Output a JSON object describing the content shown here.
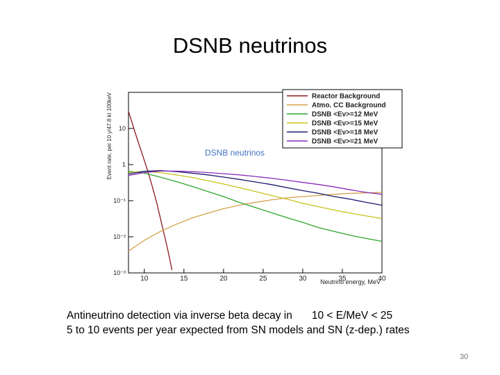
{
  "slide": {
    "title": "DSNB neutrinos",
    "caption_line1_a": "Antineutrino detection via inverse beta decay in",
    "caption_line1_b": "10 < E/MeV < 25",
    "caption_line2": "5 to 10 events per year expected from SN models and SN (z-dep.) rates",
    "page_number": "30"
  },
  "chart_data": {
    "type": "line",
    "xlabel": "Neutrino energy, MeV",
    "ylabel": "Event rate, per 10 y/47.8 kt 100keV",
    "inset_label": "DSNB neutrinos",
    "xlim": [
      8,
      40
    ],
    "ylim": [
      0.001,
      100
    ],
    "yscale": "log",
    "x_ticks": [
      10,
      15,
      20,
      25,
      30,
      35,
      40
    ],
    "y_ticks": [
      {
        "value": 0.001,
        "label": "10⁻³"
      },
      {
        "value": 0.01,
        "label": "10⁻²"
      },
      {
        "value": 0.1,
        "label": "10⁻¹"
      },
      {
        "value": 1,
        "label": "1"
      },
      {
        "value": 10,
        "label": "10"
      }
    ],
    "legend_position": "top-right",
    "series": [
      {
        "name": "Reactor Background",
        "color": "#8b1a1a",
        "x": [
          8.0,
          9.0,
          10.0,
          10.5,
          11.0,
          11.5,
          12.0,
          12.5,
          13.0,
          13.5
        ],
        "y": [
          30,
          6,
          1.3,
          0.6,
          0.25,
          0.1,
          0.035,
          0.012,
          0.004,
          0.0012
        ]
      },
      {
        "name": "Atmo. CC Background",
        "color": "#d4a04a",
        "x": [
          8,
          10,
          12,
          14,
          16,
          18,
          20,
          22,
          24,
          26,
          28,
          30,
          32,
          34,
          36,
          38,
          40
        ],
        "y": [
          0.004,
          0.008,
          0.014,
          0.022,
          0.033,
          0.045,
          0.06,
          0.075,
          0.09,
          0.105,
          0.12,
          0.13,
          0.14,
          0.15,
          0.16,
          0.165,
          0.17
        ]
      },
      {
        "name": "DSNB <Eν>=12 MeV",
        "color": "#2fa52f",
        "x": [
          8,
          10,
          12,
          14,
          16,
          18,
          20,
          22,
          24,
          26,
          28,
          30,
          32,
          34,
          36,
          38,
          40
        ],
        "y": [
          0.65,
          0.58,
          0.45,
          0.34,
          0.25,
          0.18,
          0.13,
          0.09,
          0.065,
          0.047,
          0.034,
          0.025,
          0.018,
          0.014,
          0.011,
          0.009,
          0.0075
        ]
      },
      {
        "name": "DSNB <Eν>=15 MeV",
        "color": "#c9c21e",
        "x": [
          8,
          10,
          12,
          14,
          16,
          18,
          20,
          22,
          24,
          26,
          28,
          30,
          32,
          34,
          36,
          38,
          40
        ],
        "y": [
          0.6,
          0.65,
          0.6,
          0.52,
          0.44,
          0.36,
          0.29,
          0.23,
          0.18,
          0.14,
          0.11,
          0.085,
          0.068,
          0.055,
          0.045,
          0.038,
          0.032
        ]
      },
      {
        "name": "DSNB <Eν>=18 MeV",
        "color": "#1a1a6e",
        "x": [
          8,
          10,
          12,
          14,
          16,
          18,
          20,
          22,
          24,
          26,
          28,
          30,
          32,
          34,
          36,
          38,
          40
        ],
        "y": [
          0.55,
          0.65,
          0.68,
          0.64,
          0.58,
          0.52,
          0.45,
          0.39,
          0.33,
          0.28,
          0.23,
          0.19,
          0.16,
          0.13,
          0.11,
          0.09,
          0.075
        ]
      },
      {
        "name": "DSNB <Eν>=21 MeV",
        "color": "#8a2bb8",
        "x": [
          8,
          10,
          12,
          14,
          16,
          18,
          20,
          22,
          24,
          26,
          28,
          30,
          32,
          34,
          36,
          38,
          40
        ],
        "y": [
          0.5,
          0.6,
          0.66,
          0.66,
          0.64,
          0.6,
          0.56,
          0.52,
          0.47,
          0.42,
          0.37,
          0.32,
          0.28,
          0.24,
          0.2,
          0.17,
          0.15
        ]
      }
    ]
  }
}
